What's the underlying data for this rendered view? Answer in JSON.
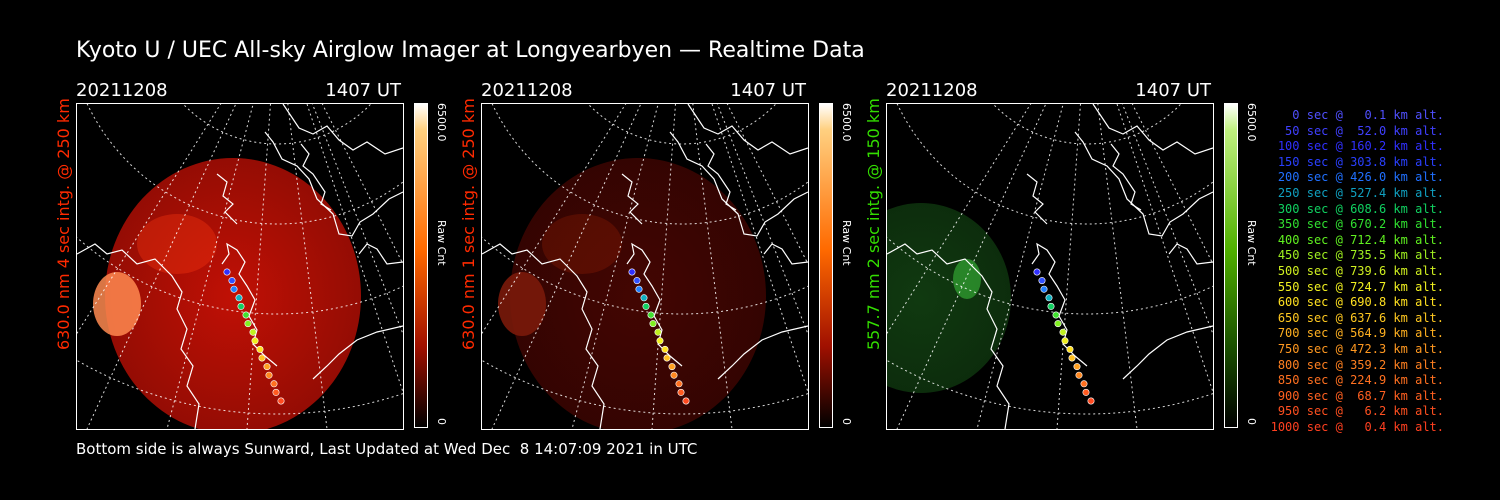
{
  "title": "Kyoto U / UEC All-sky Airglow Imager at Longyearbyen — Realtime Data",
  "footer": "Bottom side is always Sunward, Last Updated at Wed Dec  8 14:07:09 2021 in UTC",
  "panels": [
    {
      "date": "20211208",
      "time": "1407 UT",
      "side_label": "630.0 nm 4 sec intg. @ 250 km",
      "colorbar_max": "6500.0",
      "colorbar_label": "Raw Cnt",
      "colorbar_min": "0",
      "color": "#ff2a00"
    },
    {
      "date": "20211208",
      "time": "1407 UT",
      "side_label": "630.0 nm 1 sec intg. @ 250 km",
      "colorbar_max": "6500.0",
      "colorbar_label": "Raw Cnt",
      "colorbar_min": "0",
      "color": "#ff2a00"
    },
    {
      "date": "20211208",
      "time": "1407 UT",
      "side_label": "557.7 nm 2 sec intg. @ 150 km",
      "colorbar_max": "6500.0",
      "colorbar_label": "Raw Cnt",
      "colorbar_min": "0",
      "color": "#33dd00"
    }
  ],
  "legend": [
    {
      "text": "0 sec @   0.1 km alt.",
      "color": "#5050ff"
    },
    {
      "text": "50 sec @  52.0 km alt.",
      "color": "#4040ff"
    },
    {
      "text": "100 sec @ 160.2 km alt.",
      "color": "#3030ff"
    },
    {
      "text": "150 sec @ 303.8 km alt.",
      "color": "#2a40ff"
    },
    {
      "text": "200 sec @ 426.0 km alt.",
      "color": "#2070ff"
    },
    {
      "text": "250 sec @ 527.4 km alt.",
      "color": "#10a0c0"
    },
    {
      "text": "300 sec @ 608.6 km alt.",
      "color": "#10d060"
    },
    {
      "text": "350 sec @ 670.2 km alt.",
      "color": "#30e030"
    },
    {
      "text": "400 sec @ 712.4 km alt.",
      "color": "#60f020"
    },
    {
      "text": "450 sec @ 735.5 km alt.",
      "color": "#a0f020"
    },
    {
      "text": "500 sec @ 739.6 km alt.",
      "color": "#d0f020"
    },
    {
      "text": "550 sec @ 724.7 km alt.",
      "color": "#f0f020"
    },
    {
      "text": "600 sec @ 690.8 km alt.",
      "color": "#ffe020"
    },
    {
      "text": "650 sec @ 637.6 km alt.",
      "color": "#ffc820"
    },
    {
      "text": "700 sec @ 564.9 km alt.",
      "color": "#ffb020"
    },
    {
      "text": "750 sec @ 472.3 km alt.",
      "color": "#ff9820"
    },
    {
      "text": "800 sec @ 359.2 km alt.",
      "color": "#ff8020"
    },
    {
      "text": "850 sec @ 224.9 km alt.",
      "color": "#ff7020"
    },
    {
      "text": "900 sec @  68.7 km alt.",
      "color": "#ff6020"
    },
    {
      "text": "950 sec @   6.2 km alt.",
      "color": "#ff5020"
    },
    {
      "text": "1000 sec @   0.4 km alt.",
      "color": "#ff4020"
    }
  ]
}
